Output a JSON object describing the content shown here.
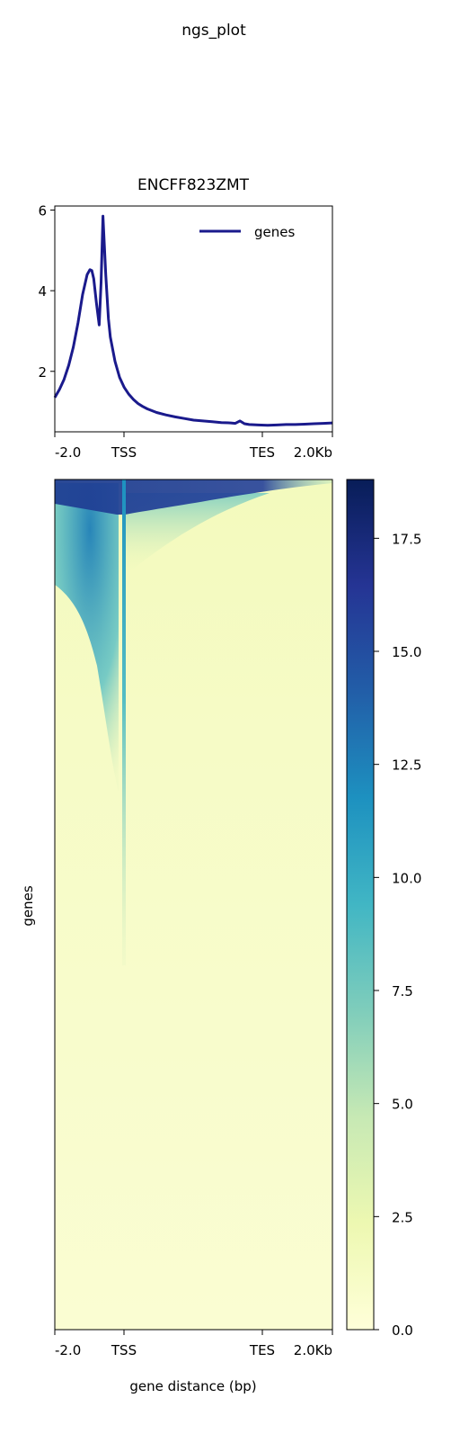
{
  "figure": {
    "suptitle": "ngs_plot"
  },
  "chart_data": [
    {
      "type": "line",
      "title": "ENCFF823ZMT",
      "xlabel": "",
      "ylabel": "",
      "x_tick_labels": [
        "-2.0",
        "TSS",
        "TES",
        "2.0Kb"
      ],
      "y_ticks": [
        2,
        4,
        6
      ],
      "ylim": [
        0.5,
        6.1
      ],
      "legend": {
        "position": "top-right"
      },
      "series": [
        {
          "name": "genes",
          "color": "#1a1a8c",
          "x": [
            0,
            5,
            10,
            15,
            20,
            25,
            30,
            35,
            38,
            40,
            42,
            45,
            48,
            50,
            52,
            55,
            58,
            60,
            65,
            70,
            75,
            80,
            85,
            90,
            95,
            100,
            110,
            120,
            130,
            140,
            150,
            160,
            170,
            180,
            190,
            195,
            200,
            205,
            210,
            220,
            230,
            240,
            250,
            260,
            270,
            280,
            290,
            300
          ],
          "values": [
            1.35,
            1.55,
            1.8,
            2.15,
            2.6,
            3.2,
            3.9,
            4.4,
            4.52,
            4.5,
            4.3,
            3.7,
            3.15,
            4.2,
            5.85,
            4.4,
            3.3,
            2.85,
            2.25,
            1.85,
            1.6,
            1.43,
            1.3,
            1.2,
            1.13,
            1.07,
            0.98,
            0.92,
            0.87,
            0.83,
            0.79,
            0.77,
            0.75,
            0.73,
            0.72,
            0.71,
            0.77,
            0.7,
            0.68,
            0.67,
            0.66,
            0.67,
            0.68,
            0.68,
            0.69,
            0.7,
            0.71,
            0.72
          ]
        }
      ]
    },
    {
      "type": "heatmap",
      "title": "",
      "xlabel": "gene distance (bp)",
      "ylabel": "genes",
      "x_tick_labels": [
        "-2.0",
        "TSS",
        "TES",
        "2.0Kb"
      ],
      "colormap": [
        "#ffffd9",
        "#edf8b1",
        "#c7e9b4",
        "#7fcdbb",
        "#41b6c4",
        "#1d91c0",
        "#225ea8",
        "#253494",
        "#081d58"
      ],
      "value_range": [
        0,
        18.8
      ],
      "colorbar_ticks": [
        0.0,
        2.5,
        5.0,
        7.5,
        10.0,
        12.5,
        15.0,
        17.5
      ],
      "colorbar_tick_labels": [
        "0.0",
        "2.5",
        "5.0",
        "7.5",
        "10.0",
        "12.5",
        "15.0",
        "17.5"
      ]
    }
  ]
}
